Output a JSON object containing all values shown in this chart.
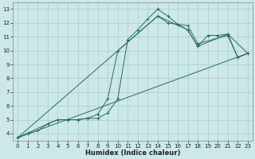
{
  "xlabel": "Humidex (Indice chaleur)",
  "bg_color": "#cce8e8",
  "grid_color": "#aacccc",
  "line_color": "#2a6b62",
  "xlim": [
    -0.5,
    23.5
  ],
  "ylim": [
    3.5,
    13.5
  ],
  "xticks": [
    0,
    1,
    2,
    3,
    4,
    5,
    6,
    7,
    8,
    9,
    10,
    11,
    12,
    13,
    14,
    15,
    16,
    17,
    18,
    19,
    20,
    21,
    22,
    23
  ],
  "yticks": [
    4,
    5,
    6,
    7,
    8,
    9,
    10,
    11,
    12,
    13
  ],
  "line1_x": [
    0,
    1,
    2,
    3,
    4,
    5,
    6,
    7,
    8,
    9,
    10,
    11,
    12,
    13,
    14,
    15,
    16,
    17,
    18,
    19,
    20,
    21,
    22,
    23
  ],
  "line1_y": [
    3.7,
    4.0,
    4.2,
    4.7,
    5.0,
    5.0,
    5.0,
    5.1,
    5.1,
    5.5,
    6.5,
    10.8,
    11.5,
    12.3,
    13.0,
    12.5,
    11.9,
    11.5,
    10.3,
    11.1,
    11.1,
    11.2,
    9.5,
    9.8
  ],
  "line2_x": [
    0,
    3,
    4,
    5,
    6,
    7,
    8,
    9,
    10,
    14,
    15,
    17,
    18,
    21,
    22,
    23
  ],
  "line2_y": [
    3.7,
    4.7,
    5.0,
    5.0,
    5.0,
    5.1,
    5.4,
    6.5,
    10.0,
    12.5,
    12.0,
    11.8,
    10.5,
    11.1,
    9.5,
    9.8
  ],
  "line3_x": [
    0,
    14,
    17,
    18,
    21,
    23
  ],
  "line3_y": [
    3.7,
    12.5,
    11.5,
    10.3,
    11.2,
    9.8
  ],
  "line4_x": [
    0,
    23
  ],
  "line4_y": [
    3.7,
    9.8
  ]
}
